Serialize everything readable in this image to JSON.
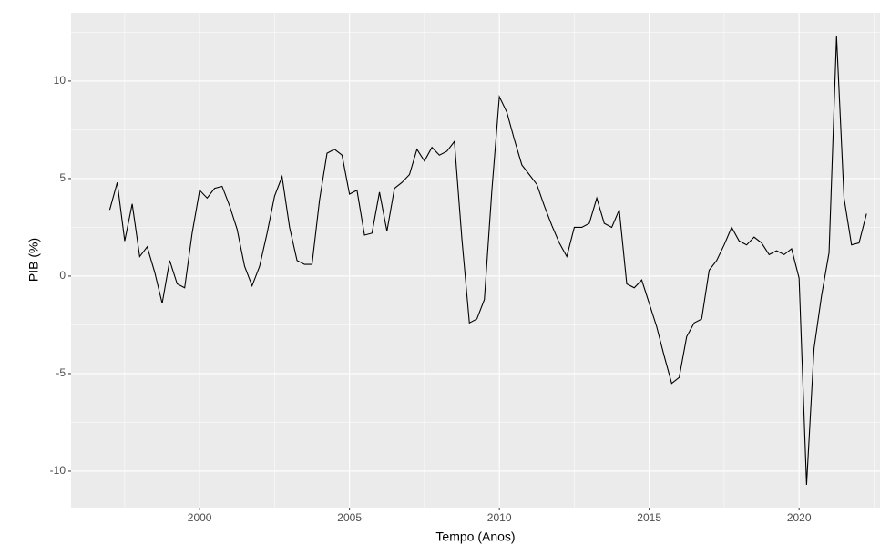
{
  "chart_data": {
    "type": "line",
    "x_label": "Tempo (Anos)",
    "y_label": "PIB (%)",
    "x": [
      1997,
      1997.25,
      1997.5,
      1997.75,
      1998,
      1998.25,
      1998.5,
      1998.75,
      1999,
      1999.25,
      1999.5,
      1999.75,
      2000,
      2000.25,
      2000.5,
      2000.75,
      2001,
      2001.25,
      2001.5,
      2001.75,
      2002,
      2002.25,
      2002.5,
      2002.75,
      2003,
      2003.25,
      2003.5,
      2003.75,
      2004,
      2004.25,
      2004.5,
      2004.75,
      2005,
      2005.25,
      2005.5,
      2005.75,
      2006,
      2006.25,
      2006.5,
      2006.75,
      2007,
      2007.25,
      2007.5,
      2007.75,
      2008,
      2008.25,
      2008.5,
      2008.75,
      2009,
      2009.25,
      2009.5,
      2009.75,
      2010,
      2010.25,
      2010.5,
      2010.75,
      2011,
      2011.25,
      2011.5,
      2011.75,
      2012,
      2012.25,
      2012.5,
      2012.75,
      2013,
      2013.25,
      2013.5,
      2013.75,
      2014,
      2014.25,
      2014.5,
      2014.75,
      2015,
      2015.25,
      2015.5,
      2015.75,
      2016,
      2016.25,
      2016.5,
      2016.75,
      2017,
      2017.25,
      2017.5,
      2017.75,
      2018,
      2018.25,
      2018.5,
      2018.75,
      2019,
      2019.25,
      2019.5,
      2019.75,
      2020,
      2020.25,
      2020.5,
      2020.75,
      2021,
      2021.25,
      2021.5,
      2021.75,
      2022,
      2022.25
    ],
    "series": [
      {
        "color": "#000000",
        "values": [
          3.4,
          4.8,
          1.8,
          3.7,
          1.0,
          1.5,
          0.2,
          -1.4,
          0.8,
          -0.4,
          -0.6,
          2.2,
          4.4,
          4.0,
          4.5,
          4.6,
          3.6,
          2.4,
          0.5,
          -0.5,
          0.5,
          2.2,
          4.1,
          5.1,
          2.5,
          0.8,
          0.6,
          0.6,
          3.9,
          6.3,
          6.5,
          6.2,
          4.2,
          4.4,
          2.1,
          2.2,
          4.3,
          2.3,
          4.5,
          4.8,
          5.2,
          6.5,
          5.9,
          6.6,
          6.2,
          6.4,
          6.9,
          1.9,
          -2.4,
          -2.2,
          -1.2,
          4.4,
          9.2,
          8.4,
          7.0,
          5.7,
          5.2,
          4.7,
          3.6,
          2.6,
          1.7,
          1.0,
          2.5,
          2.5,
          2.7,
          4.0,
          2.7,
          2.5,
          3.4,
          -0.4,
          -0.6,
          -0.2,
          -1.4,
          -2.6,
          -4.1,
          -5.5,
          -5.2,
          -3.1,
          -2.4,
          -2.2,
          0.3,
          0.8,
          1.6,
          2.5,
          1.8,
          1.6,
          2.0,
          1.7,
          1.1,
          1.3,
          1.1,
          1.4,
          -0.1,
          -10.7,
          -3.7,
          -1.0,
          1.2,
          12.3,
          4.0,
          1.6,
          1.7,
          3.2
        ]
      }
    ],
    "xlim": [
      1995.71,
      2022.7
    ],
    "xticks": [
      2000,
      2005,
      2010,
      2015,
      2020
    ],
    "ylim": [
      -11.87,
      13.5
    ],
    "yticks": [
      -10,
      -5,
      0,
      5,
      10
    ],
    "grid": true,
    "minor_grid": true
  }
}
